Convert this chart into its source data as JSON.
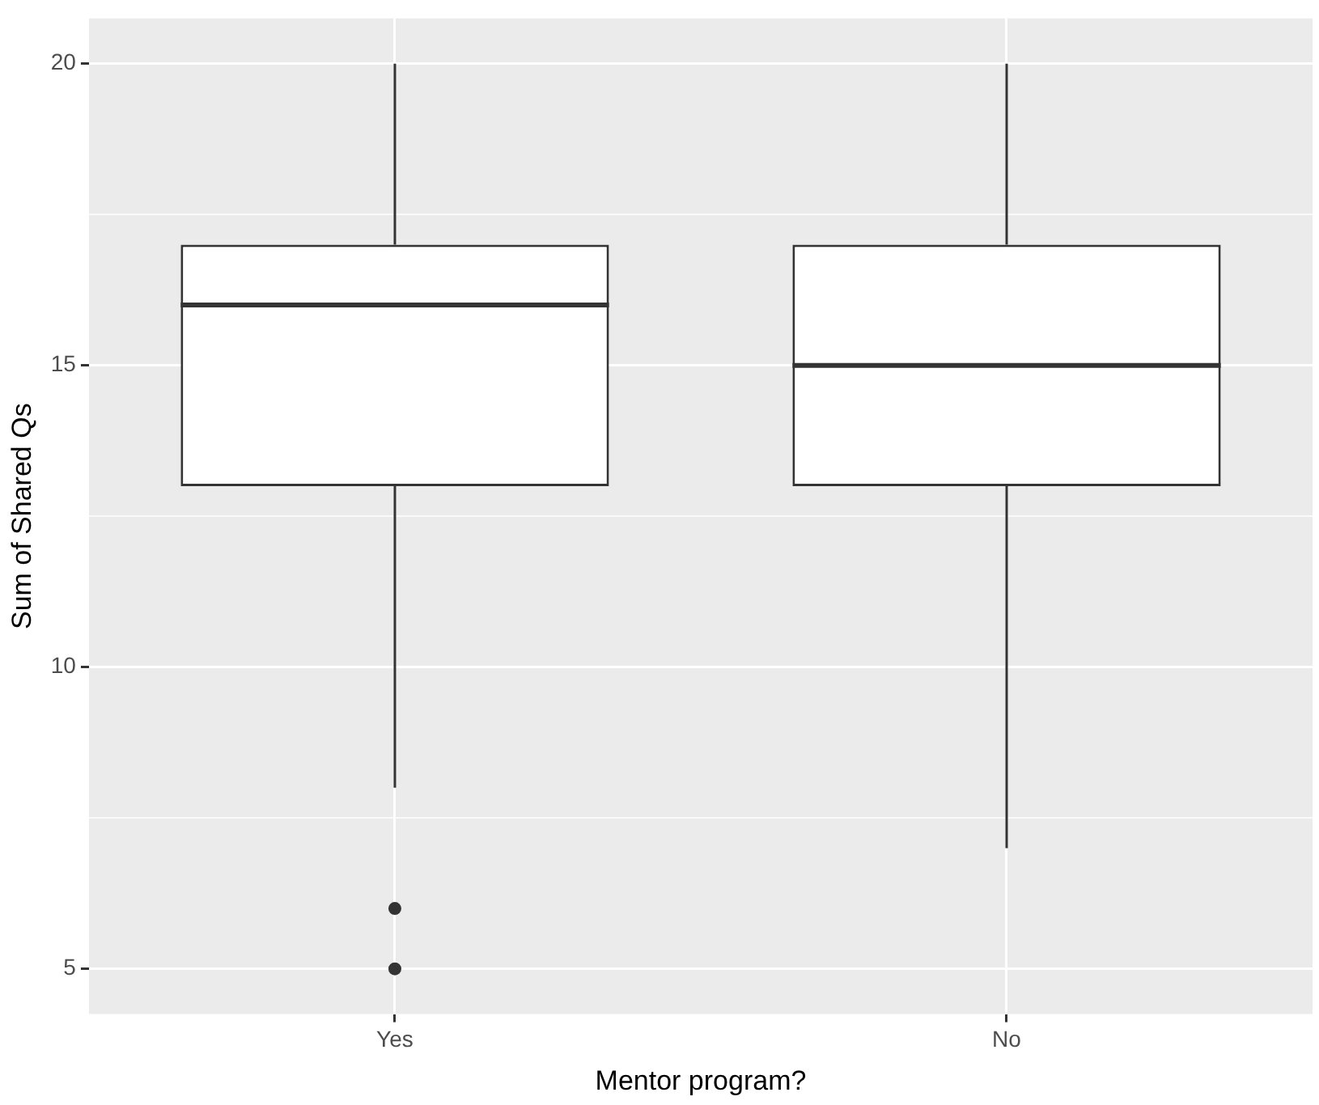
{
  "chart_data": {
    "type": "box",
    "xlabel": "Mentor program?",
    "ylabel": "Sum of Shared Qs",
    "categories": [
      "Yes",
      "No"
    ],
    "color": "#333333",
    "boxes": [
      {
        "low": 8,
        "q1": 13,
        "median": 16,
        "q3": 17,
        "high": 20,
        "outliers": [
          5,
          6
        ]
      },
      {
        "low": 7,
        "q1": 13,
        "median": 15,
        "q3": 17,
        "high": 20
      }
    ],
    "ylim": [
      4.25,
      20.75
    ],
    "yticks": [
      5,
      {
        "value": 7.5,
        "label": null
      },
      10,
      {
        "value": 12.5,
        "label": null
      },
      15,
      {
        "value": 17.5,
        "label": null
      },
      20
    ],
    "grid": true
  }
}
